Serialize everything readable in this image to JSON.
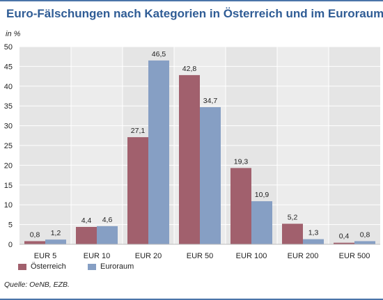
{
  "title": "Euro-Fälschungen nach Kategorien in Österreich und im Euroraum",
  "unit_label": "in %",
  "source": "Quelle: OeNB, EZB.",
  "colors": {
    "title": "#2f5c95",
    "frame": "#4a74a8",
    "series_oesterreich": "#a1606d",
    "series_euroraum": "#869fc4",
    "panel": "#e5e5e5",
    "grid": "#ffffff"
  },
  "legend": {
    "item1": "Österreich",
    "item2": "Euroraum"
  },
  "chart_data": {
    "type": "bar",
    "title": "Euro-Fälschungen nach Kategorien in Österreich und im Euroraum",
    "ylabel": "in %",
    "ylim": [
      0,
      50
    ],
    "yticks": [
      0,
      5,
      10,
      15,
      20,
      25,
      30,
      35,
      40,
      45,
      50
    ],
    "grid": true,
    "legend_position": "bottom-left",
    "categories": [
      "EUR 5",
      "EUR 10",
      "EUR 20",
      "EUR 50",
      "EUR 100",
      "EUR 200",
      "EUR 500"
    ],
    "series": [
      {
        "name": "Österreich",
        "values": [
          0.8,
          4.4,
          27.1,
          42.8,
          19.3,
          5.2,
          0.4
        ],
        "labels": [
          "0,8",
          "4,4",
          "27,1",
          "42,8",
          "19,3",
          "5,2",
          "0,4"
        ]
      },
      {
        "name": "Euroraum",
        "values": [
          1.2,
          4.6,
          46.5,
          34.7,
          10.9,
          1.3,
          0.8
        ],
        "labels": [
          "1,2",
          "4,6",
          "46,5",
          "34,7",
          "10,9",
          "1,3",
          "0,8"
        ]
      }
    ]
  }
}
